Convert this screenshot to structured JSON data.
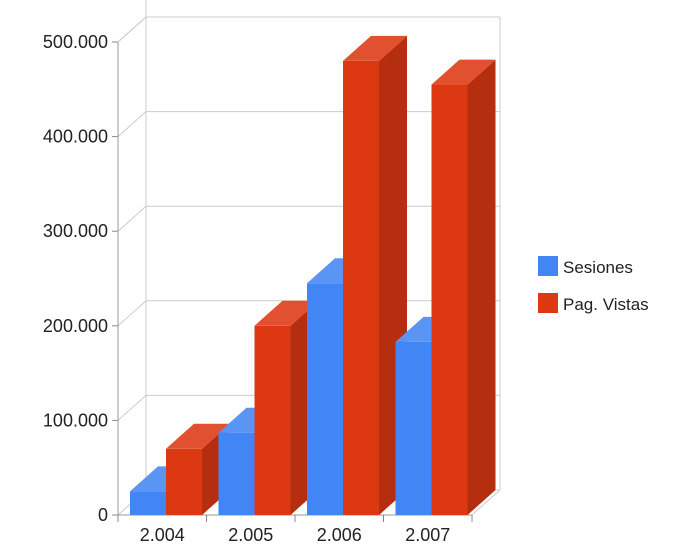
{
  "chart_data": {
    "type": "bar",
    "style": "3d-clustered-column",
    "categories": [
      "2.004",
      "2.005",
      "2.006",
      "2.007"
    ],
    "series": [
      {
        "name": "Sesiones",
        "color": "#4285f4",
        "side_color": "#2f66c9",
        "top_color": "#5a95f5",
        "values": [
          25000,
          87000,
          245000,
          183000
        ]
      },
      {
        "name": "Pag. Vistas",
        "color": "#dc3912",
        "side_color": "#b52e0f",
        "top_color": "#e2512f",
        "values": [
          70000,
          200000,
          480000,
          455000
        ]
      }
    ],
    "y_ticks": [
      {
        "value": 0,
        "label": "0"
      },
      {
        "value": 100000,
        "label": "100.000"
      },
      {
        "value": 200000,
        "label": "200.000"
      },
      {
        "value": 300000,
        "label": "300.000"
      },
      {
        "value": 400000,
        "label": "400.000"
      },
      {
        "value": 500000,
        "label": "500.000"
      }
    ],
    "ylim": [
      0,
      500000
    ],
    "grid": true,
    "legend_position": "right",
    "title": "",
    "xlabel": "",
    "ylabel": ""
  }
}
